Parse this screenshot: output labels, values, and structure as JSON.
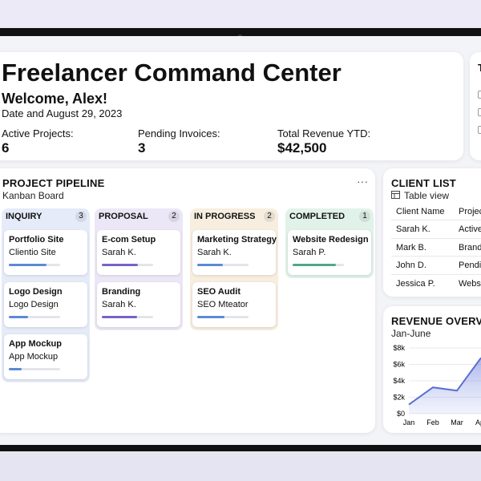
{
  "header": {
    "title": "Freelancer Command Center",
    "welcome": "Welcome, Alex!",
    "date": "Date and August 29, 2023",
    "stats": [
      {
        "label": "Active Projects:",
        "value": "6"
      },
      {
        "label": "Pending Invoices:",
        "value": "3"
      },
      {
        "label": "Total Revenue YTD:",
        "value": "$42,500"
      }
    ]
  },
  "side_card": {
    "title": "T"
  },
  "pipeline": {
    "title": "PROJECT PIPELINE",
    "subtitle": "Kanban Board",
    "menu": "···",
    "columns": [
      {
        "name": "INQUIRY",
        "count": 3,
        "background": "#e5ebf8",
        "color": "#5b8ad6",
        "cards": [
          {
            "title": "Portfolio Site",
            "subtitle": "Clientio Site",
            "progress": 73
          },
          {
            "title": "Logo Design",
            "subtitle": "Logo Design",
            "progress": 37
          },
          {
            "title": "App Mockup",
            "subtitle": "App Mockup",
            "progress": 25
          }
        ]
      },
      {
        "name": "PROPOSAL",
        "count": 2,
        "background": "#ebe7f6",
        "color": "#7b62c4",
        "cards": [
          {
            "title": "E-com Setup",
            "subtitle": "Sarah K.",
            "progress": 71
          },
          {
            "title": "Branding",
            "subtitle": "Sarah K.",
            "progress": 68
          }
        ]
      },
      {
        "name": "IN PROGRESS",
        "count": 2,
        "background": "#f7eedf",
        "color": "#5b8ad6",
        "cards": [
          {
            "title": "Marketing Strategy",
            "subtitle": "Sarah K.",
            "progress": 50
          },
          {
            "title": "SEO Audit",
            "subtitle": "SEO Mteator",
            "progress": 53
          }
        ]
      },
      {
        "name": "COMPLETED",
        "count": 1,
        "background": "#e1f2e9",
        "color": "#4fa88a",
        "cards": [
          {
            "title": "Website Redesign",
            "subtitle": "Sarah P.",
            "progress": 84
          }
        ]
      }
    ]
  },
  "client_list": {
    "title": "CLIENT LIST",
    "view": "Table view",
    "columns": [
      "Client Name",
      "Project"
    ],
    "rows": [
      [
        "Sarah K.",
        "Active"
      ],
      [
        "Mark B.",
        "Branding"
      ],
      [
        "John D.",
        "Pending"
      ],
      [
        "Jessica P.",
        "Website"
      ]
    ]
  },
  "revenue": {
    "title": "REVENUE OVERVIEW",
    "subtitle": "Jan-June",
    "chart_data": {
      "type": "area",
      "categories": [
        "Jan",
        "Feb",
        "Mar",
        "Apr"
      ],
      "values": [
        1100,
        3200,
        2800,
        6800
      ],
      "color": "#5b6fd0",
      "ylim": [
        0,
        8000
      ],
      "yticks": [
        {
          "value": 0,
          "label": "$0"
        },
        {
          "value": 2000,
          "label": "$2k"
        },
        {
          "value": 4000,
          "label": "$4k"
        },
        {
          "value": 6000,
          "label": "$6k"
        },
        {
          "value": 8000,
          "label": "$8k"
        }
      ],
      "grid": true
    }
  }
}
